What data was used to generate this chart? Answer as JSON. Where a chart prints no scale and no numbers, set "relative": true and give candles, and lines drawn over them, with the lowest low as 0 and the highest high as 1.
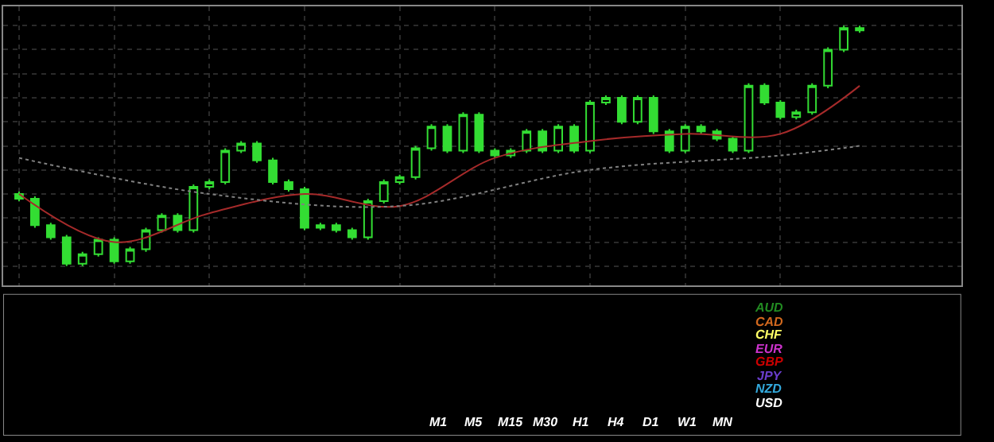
{
  "chart_data": [
    {
      "type": "candlestick",
      "relative": true,
      "color": "#33dd33",
      "grid": true,
      "categories": [
        null,
        null,
        null,
        null,
        null,
        null,
        null,
        null,
        null,
        null,
        null,
        null,
        null,
        null,
        null,
        null,
        null,
        null,
        null,
        null,
        null,
        null,
        null,
        null,
        null,
        null,
        null,
        null,
        null,
        null,
        null,
        null,
        null,
        null,
        null,
        null,
        null,
        null,
        null,
        null,
        null,
        null,
        null,
        null,
        null,
        null,
        null,
        null,
        null,
        null,
        null,
        null,
        null,
        null
      ],
      "ohlc": [
        [
          0.3,
          0.31,
          0.27,
          0.28
        ],
        [
          0.28,
          0.29,
          0.16,
          0.17
        ],
        [
          0.17,
          0.18,
          0.11,
          0.12
        ],
        [
          0.12,
          0.13,
          0.0,
          0.01
        ],
        [
          0.01,
          0.06,
          0.0,
          0.05
        ],
        [
          0.05,
          0.12,
          0.04,
          0.11
        ],
        [
          0.11,
          0.12,
          0.01,
          0.02
        ],
        [
          0.02,
          0.08,
          0.01,
          0.07
        ],
        [
          0.07,
          0.16,
          0.06,
          0.15
        ],
        [
          0.15,
          0.22,
          0.14,
          0.21
        ],
        [
          0.21,
          0.22,
          0.14,
          0.15
        ],
        [
          0.15,
          0.34,
          0.14,
          0.33
        ],
        [
          0.33,
          0.36,
          0.32,
          0.35
        ],
        [
          0.35,
          0.49,
          0.34,
          0.48
        ],
        [
          0.48,
          0.52,
          0.47,
          0.51
        ],
        [
          0.51,
          0.52,
          0.43,
          0.44
        ],
        [
          0.44,
          0.45,
          0.34,
          0.35
        ],
        [
          0.35,
          0.36,
          0.31,
          0.32
        ],
        [
          0.32,
          0.33,
          0.15,
          0.16
        ],
        [
          0.16,
          0.18,
          0.15,
          0.17
        ],
        [
          0.17,
          0.18,
          0.14,
          0.15
        ],
        [
          0.15,
          0.16,
          0.11,
          0.12
        ],
        [
          0.12,
          0.28,
          0.11,
          0.27
        ],
        [
          0.27,
          0.36,
          0.26,
          0.35
        ],
        [
          0.35,
          0.38,
          0.34,
          0.37
        ],
        [
          0.37,
          0.5,
          0.36,
          0.49
        ],
        [
          0.49,
          0.59,
          0.48,
          0.58
        ],
        [
          0.58,
          0.59,
          0.47,
          0.48
        ],
        [
          0.48,
          0.64,
          0.47,
          0.63
        ],
        [
          0.63,
          0.64,
          0.47,
          0.48
        ],
        [
          0.48,
          0.49,
          0.45,
          0.46
        ],
        [
          0.46,
          0.49,
          0.45,
          0.48
        ],
        [
          0.48,
          0.57,
          0.47,
          0.56
        ],
        [
          0.56,
          0.57,
          0.47,
          0.48
        ],
        [
          0.48,
          0.59,
          0.47,
          0.58
        ],
        [
          0.58,
          0.59,
          0.47,
          0.48
        ],
        [
          0.48,
          0.69,
          0.47,
          0.68
        ],
        [
          0.68,
          0.71,
          0.67,
          0.7
        ],
        [
          0.7,
          0.71,
          0.59,
          0.6
        ],
        [
          0.6,
          0.71,
          0.59,
          0.7
        ],
        [
          0.7,
          0.71,
          0.55,
          0.56
        ],
        [
          0.56,
          0.57,
          0.47,
          0.48
        ],
        [
          0.48,
          0.59,
          0.47,
          0.58
        ],
        [
          0.58,
          0.59,
          0.55,
          0.56
        ],
        [
          0.56,
          0.57,
          0.52,
          0.53
        ],
        [
          0.53,
          0.54,
          0.47,
          0.48
        ],
        [
          0.48,
          0.76,
          0.47,
          0.75
        ],
        [
          0.75,
          0.76,
          0.67,
          0.68
        ],
        [
          0.68,
          0.69,
          0.61,
          0.62
        ],
        [
          0.62,
          0.65,
          0.61,
          0.64
        ],
        [
          0.64,
          0.76,
          0.63,
          0.75
        ],
        [
          0.75,
          0.91,
          0.74,
          0.9
        ],
        [
          0.9,
          1.0,
          0.89,
          0.99
        ],
        [
          0.99,
          1.0,
          0.97,
          0.98
        ]
      ],
      "series": [
        {
          "type": "line",
          "color": "#a52a2a",
          "line_style": "solid",
          "values": [
            0.3,
            null,
            null,
            null,
            null,
            null,
            0.1,
            null,
            null,
            null,
            null,
            null,
            0.22,
            null,
            null,
            null,
            null,
            null,
            0.3,
            null,
            null,
            null,
            null,
            null,
            0.25,
            null,
            null,
            null,
            null,
            null,
            0.45,
            null,
            null,
            null,
            null,
            null,
            0.52,
            null,
            null,
            null,
            null,
            null,
            0.55,
            null,
            null,
            null,
            null,
            null,
            0.55,
            null,
            null,
            null,
            null,
            0.75
          ]
        },
        {
          "type": "line",
          "color": "#808080",
          "line_style": "dotted",
          "values": [
            0.45,
            null,
            null,
            null,
            null,
            null,
            null,
            null,
            null,
            null,
            null,
            null,
            0.3,
            null,
            null,
            null,
            null,
            null,
            null,
            null,
            null,
            null,
            null,
            null,
            0.25,
            null,
            null,
            null,
            null,
            null,
            null,
            null,
            null,
            null,
            null,
            null,
            0.4,
            null,
            null,
            null,
            null,
            null,
            null,
            null,
            null,
            null,
            null,
            null,
            0.46,
            null,
            null,
            null,
            null,
            0.5
          ]
        }
      ]
    },
    {
      "type": "other",
      "annotations": [
        "M1",
        "M5",
        "M15",
        "M30",
        "H1",
        "H4",
        "D1",
        "W1",
        "MN"
      ],
      "series": [
        {
          "name": "AUD",
          "color": "#228b22"
        },
        {
          "name": "CAD",
          "color": "#d2691e"
        },
        {
          "name": "CHF",
          "color": "#ffff66"
        },
        {
          "name": "EUR",
          "color": "#cc33cc"
        },
        {
          "name": "GBP",
          "color": "#cc0000"
        },
        {
          "name": "JPY",
          "color": "#6a3dcc"
        },
        {
          "name": "NZD",
          "color": "#33aadd"
        },
        {
          "name": "USD",
          "color": "#ffffff"
        }
      ]
    }
  ]
}
